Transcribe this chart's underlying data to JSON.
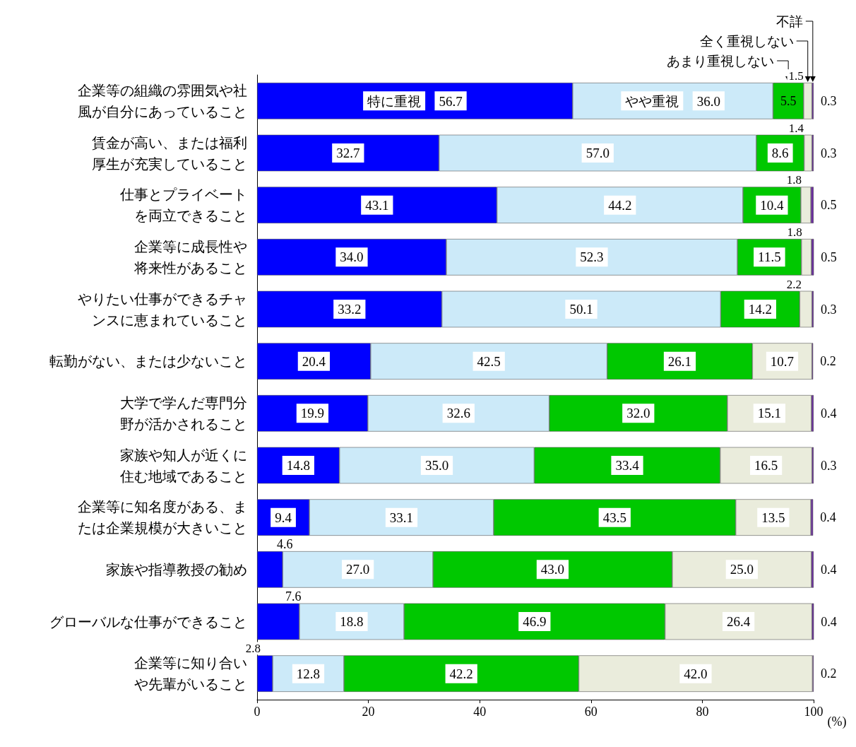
{
  "chart_data": {
    "type": "bar",
    "orientation": "horizontal",
    "stacked": true,
    "legend": false,
    "grid": false,
    "xlabel": "(%)",
    "xlim": [
      0,
      100
    ],
    "xticks": [
      0,
      20,
      40,
      60,
      80,
      100
    ],
    "categories": [
      "企業等の組織の雰囲気や社風が自分にあっていること",
      "賃金が高い、または福利厚生が充実していること",
      "仕事とプライベートを両立できること",
      "企業等に成長性や将来性があること",
      "やりたい仕事ができるチャンスに恵まれていること",
      "転勤がない、または少ないこと",
      "大学で学んだ専門分野が活かされること",
      "家族や知人が近くに住む地域であること",
      "企業等に知名度がある、または企業規模が大きいこと",
      "家族や指導教授の勧め",
      "グローバルな仕事ができること",
      "企業等に知り合いや先輩がいること"
    ],
    "series": [
      {
        "name": "特に重視",
        "color": "#0000ff",
        "values": [
          56.7,
          32.7,
          43.1,
          34.0,
          33.2,
          20.4,
          19.9,
          14.8,
          9.4,
          4.6,
          7.6,
          2.8
        ],
        "value_labels": [
          "56.7",
          "32.7",
          "43.1",
          "34.0",
          "33.2",
          "20.4",
          "19.9",
          "14.8",
          "9.4",
          "4.6",
          "7.6",
          "2.8"
        ]
      },
      {
        "name": "やや重視",
        "color": "#cceaf9",
        "values": [
          36.0,
          57.0,
          44.2,
          52.3,
          50.1,
          42.5,
          32.6,
          35.0,
          33.1,
          27.0,
          18.8,
          12.8
        ],
        "value_labels": [
          "36.0",
          "57.0",
          "44.2",
          "52.3",
          "50.1",
          "42.5",
          "32.6",
          "35.0",
          "33.1",
          "27.0",
          "18.8",
          "12.8"
        ]
      },
      {
        "name": "あまり重視しない",
        "color": "#00c800",
        "values": [
          5.5,
          8.6,
          10.4,
          11.5,
          14.2,
          26.1,
          32.0,
          33.4,
          43.5,
          43.0,
          46.9,
          42.2
        ],
        "value_labels": [
          "5.5",
          "8.6",
          "10.4",
          "11.5",
          "14.2",
          "26.1",
          "32.0",
          "33.4",
          "43.5",
          "43.0",
          "46.9",
          "42.2"
        ]
      },
      {
        "name": "全く重視しない",
        "color": "#eaecdc",
        "values": [
          1.5,
          1.4,
          1.8,
          1.8,
          2.2,
          10.7,
          15.1,
          16.5,
          13.5,
          25.0,
          26.4,
          42.0
        ],
        "value_labels": [
          "1.5",
          "1.4",
          "1.8",
          "1.8",
          "2.2",
          "10.7",
          "15.1",
          "16.5",
          "13.5",
          "25.0",
          "26.4",
          "42.0"
        ]
      },
      {
        "name": "不詳",
        "color": "#6a2aa0",
        "values": [
          0.3,
          0.3,
          0.5,
          0.5,
          0.3,
          0.2,
          0.4,
          0.3,
          0.4,
          0.4,
          0.4,
          0.2
        ],
        "value_labels": [
          "0.3",
          "0.3",
          "0.5",
          "0.5",
          "0.3",
          "0.2",
          "0.4",
          "0.3",
          "0.4",
          "0.4",
          "0.4",
          "0.2"
        ]
      }
    ]
  }
}
